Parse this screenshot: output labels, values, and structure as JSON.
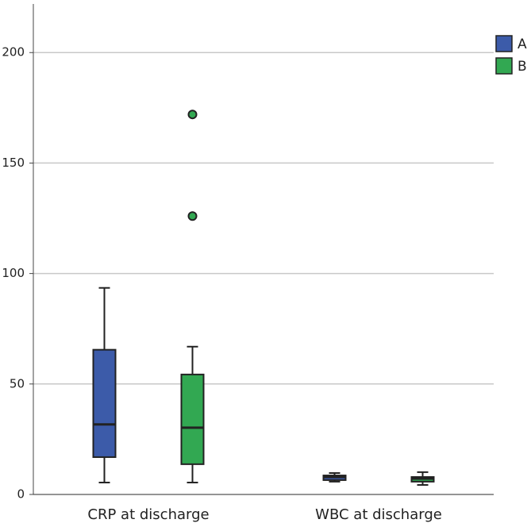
{
  "chart_data": {
    "type": "box",
    "categories": [
      "CRP at discharge",
      "WBC at discharge"
    ],
    "series": [
      {
        "name": "A",
        "color": "#3c5ba9",
        "min": [
          5.4,
          5.8
        ],
        "q1": [
          16.9,
          6.5
        ],
        "median": [
          31.7,
          7.9
        ],
        "q3": [
          65.5,
          8.6
        ],
        "max": [
          93.5,
          9.7
        ],
        "outliers": [
          [],
          []
        ]
      },
      {
        "name": "B",
        "color": "#32a852",
        "min": [
          5.4,
          4.3
        ],
        "q1": [
          13.7,
          5.8
        ],
        "median": [
          30.2,
          7.2
        ],
        "q3": [
          54.3,
          7.9
        ],
        "max": [
          66.9,
          10.1
        ],
        "outliers": [
          [
            126,
            172
          ],
          []
        ]
      }
    ],
    "ylim": [
      0,
      222
    ],
    "yticks": [
      0,
      50,
      100,
      150,
      200
    ],
    "grid": true,
    "legend": "top-right"
  }
}
